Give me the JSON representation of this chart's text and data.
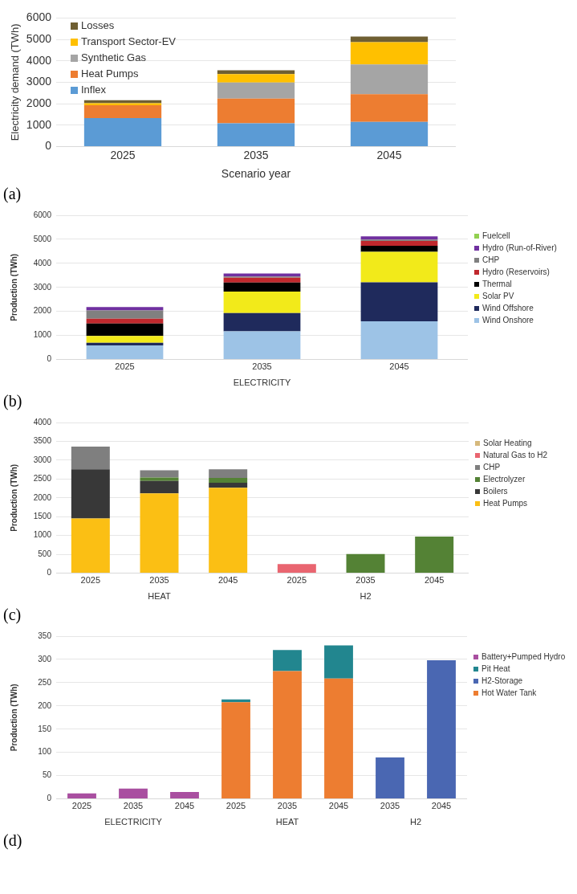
{
  "chart_data": [
    {
      "type": "bar",
      "stacked": true,
      "categories": [
        "2025",
        "2035",
        "2045"
      ],
      "xlabel": "Scenario year",
      "ylabel": "Electricity demand (TWh)",
      "ylim": [
        0,
        6000
      ],
      "yticks": [
        0,
        1000,
        2000,
        3000,
        4000,
        5000,
        6000
      ],
      "grid": "y",
      "legend": "top left",
      "annotations": [
        "(a)"
      ],
      "series": [
        {
          "name": "Inflex",
          "color": "#5b9bd5",
          "values": [
            1330,
            1080,
            1150
          ]
        },
        {
          "name": "Heat Pumps",
          "color": "#ed7d31",
          "values": [
            600,
            1160,
            1290
          ]
        },
        {
          "name": "Synthetic Gas",
          "color": "#a5a5a5",
          "values": [
            null,
            750,
            1390
          ]
        },
        {
          "name": "Transport Sector-EV",
          "color": "#ffc000",
          "values": [
            90,
            390,
            1040
          ]
        },
        {
          "name": "Losses",
          "color": "#6f5f32",
          "values": [
            140,
            180,
            260
          ]
        }
      ]
    },
    {
      "type": "bar",
      "stacked": true,
      "categories": [
        "2025",
        "2035",
        "2045"
      ],
      "xlabel": "ELECTRICITY",
      "ylabel": "Production (TWh)",
      "ylim": [
        0,
        6000
      ],
      "yticks": [
        0,
        1000,
        2000,
        3000,
        4000,
        5000,
        6000
      ],
      "grid": "y",
      "legend": "right",
      "annotations": [
        "(b)"
      ],
      "series": [
        {
          "name": "Wind Onshore",
          "color": "#9dc3e6",
          "values": [
            590,
            1170,
            1590
          ]
        },
        {
          "name": "Wind Offshore",
          "color": "#1f2a5c",
          "values": [
            110,
            760,
            1620
          ]
        },
        {
          "name": "Solar PV",
          "color": "#f2ea1a",
          "values": [
            280,
            900,
            1270
          ]
        },
        {
          "name": "Thermal",
          "color": "#000000",
          "values": [
            520,
            370,
            250
          ]
        },
        {
          "name": "Hydro (Reservoirs)",
          "color": "#c0282d",
          "values": [
            200,
            200,
            200
          ]
        },
        {
          "name": "CHP",
          "color": "#808080",
          "values": [
            340,
            50,
            60
          ]
        },
        {
          "name": "Hydro (Run-of-River)",
          "color": "#7030a0",
          "values": [
            140,
            130,
            130
          ]
        },
        {
          "name": "Fuelcell",
          "color": "#92d050",
          "values": [
            0,
            0,
            0
          ]
        }
      ]
    },
    {
      "type": "bar",
      "stacked": true,
      "categories": [
        "2025",
        "2035",
        "2045"
      ],
      "xlabel": "HEAT",
      "ylabel": "Production (TWh)",
      "ylim": [
        0,
        4000
      ],
      "yticks": [
        0,
        500,
        1000,
        1500,
        2000,
        2500,
        3000,
        3500,
        4000
      ],
      "grid": "y",
      "annotations": [
        "(c)"
      ],
      "series": [
        {
          "color": "#fbbf14",
          "values": [
            1450,
            2120,
            2270
          ]
        },
        {
          "color": "#383838",
          "values": [
            1310,
            330,
            130
          ]
        },
        {
          "color": "#548235",
          "values": [
            0,
            90,
            130
          ]
        },
        {
          "color": "#7f7f7f",
          "values": [
            600,
            190,
            230
          ]
        }
      ]
    },
    {
      "type": "bar",
      "stacked": true,
      "categories": [
        "2025",
        "2035",
        "2045"
      ],
      "xlabel": "H2",
      "ylim": [
        0,
        4000
      ],
      "yticks": [
        0,
        500,
        1000,
        1500,
        2000,
        2500,
        3000,
        3500,
        4000
      ],
      "grid": "y",
      "legend": "right",
      "tick_labels": "x",
      "series": [
        {
          "name": "Heat Pumps",
          "color": "#fbbf14",
          "values": [
            null,
            null,
            null
          ]
        },
        {
          "name": "Boilers",
          "color": "#383838",
          "values": [
            null,
            null,
            null
          ]
        },
        {
          "name": "Electrolyzer",
          "color": "#548235",
          "values": [
            null,
            510,
            970
          ]
        },
        {
          "name": "CHP",
          "color": "#7f7f7f",
          "values": [
            null,
            null,
            null
          ]
        },
        {
          "name": "Natural Gas to H2",
          "color": "#e96570",
          "values": [
            240,
            null,
            null
          ]
        },
        {
          "name": "Solar Heating",
          "color": "#d6b97c",
          "values": [
            0,
            null,
            null
          ]
        }
      ]
    },
    {
      "type": "bar",
      "stacked": true,
      "categories": [
        "2025",
        "2035",
        "2045"
      ],
      "xlabel": "ELECTRICITY",
      "ylabel": "Production (TWh)",
      "ylim": [
        0,
        350
      ],
      "yticks": [
        0,
        50,
        100,
        150,
        200,
        250,
        300,
        350
      ],
      "grid": "y",
      "annotations": [
        "(d)"
      ],
      "series": [
        {
          "color": "#a94fa0",
          "values": [
            12,
            22,
            15
          ]
        }
      ]
    },
    {
      "type": "bar",
      "stacked": true,
      "categories": [
        "2025",
        "2035",
        "2045"
      ],
      "xlabel": "HEAT",
      "ylim": [
        0,
        350
      ],
      "yticks": [
        0,
        50,
        100,
        150,
        200,
        250,
        300,
        350
      ],
      "grid": "y",
      "tick_labels": "x",
      "series": [
        {
          "color": "#ed7d31",
          "values": [
            208,
            275,
            259
          ]
        },
        {
          "color": "#22868f",
          "values": [
            6,
            45,
            71
          ]
        }
      ]
    },
    {
      "type": "bar",
      "stacked": true,
      "categories": [
        "2035",
        "2045"
      ],
      "xlabel": "H2",
      "ylim": [
        0,
        350
      ],
      "yticks": [
        0,
        50,
        100,
        150,
        200,
        250,
        300,
        350
      ],
      "grid": "y",
      "legend": "right",
      "tick_labels": "x",
      "series": [
        {
          "name": "Hot Water Tank",
          "color": "#ed7d31",
          "values": [
            null,
            null
          ]
        },
        {
          "name": "H2-Storage",
          "color": "#4a67b2",
          "values": [
            89,
            298
          ]
        },
        {
          "name": "Pit Heat",
          "color": "#22868f",
          "values": [
            null,
            null
          ]
        },
        {
          "name": "Battery+Pumped Hydro",
          "color": "#a94fa0",
          "values": [
            null,
            null
          ]
        }
      ]
    }
  ]
}
